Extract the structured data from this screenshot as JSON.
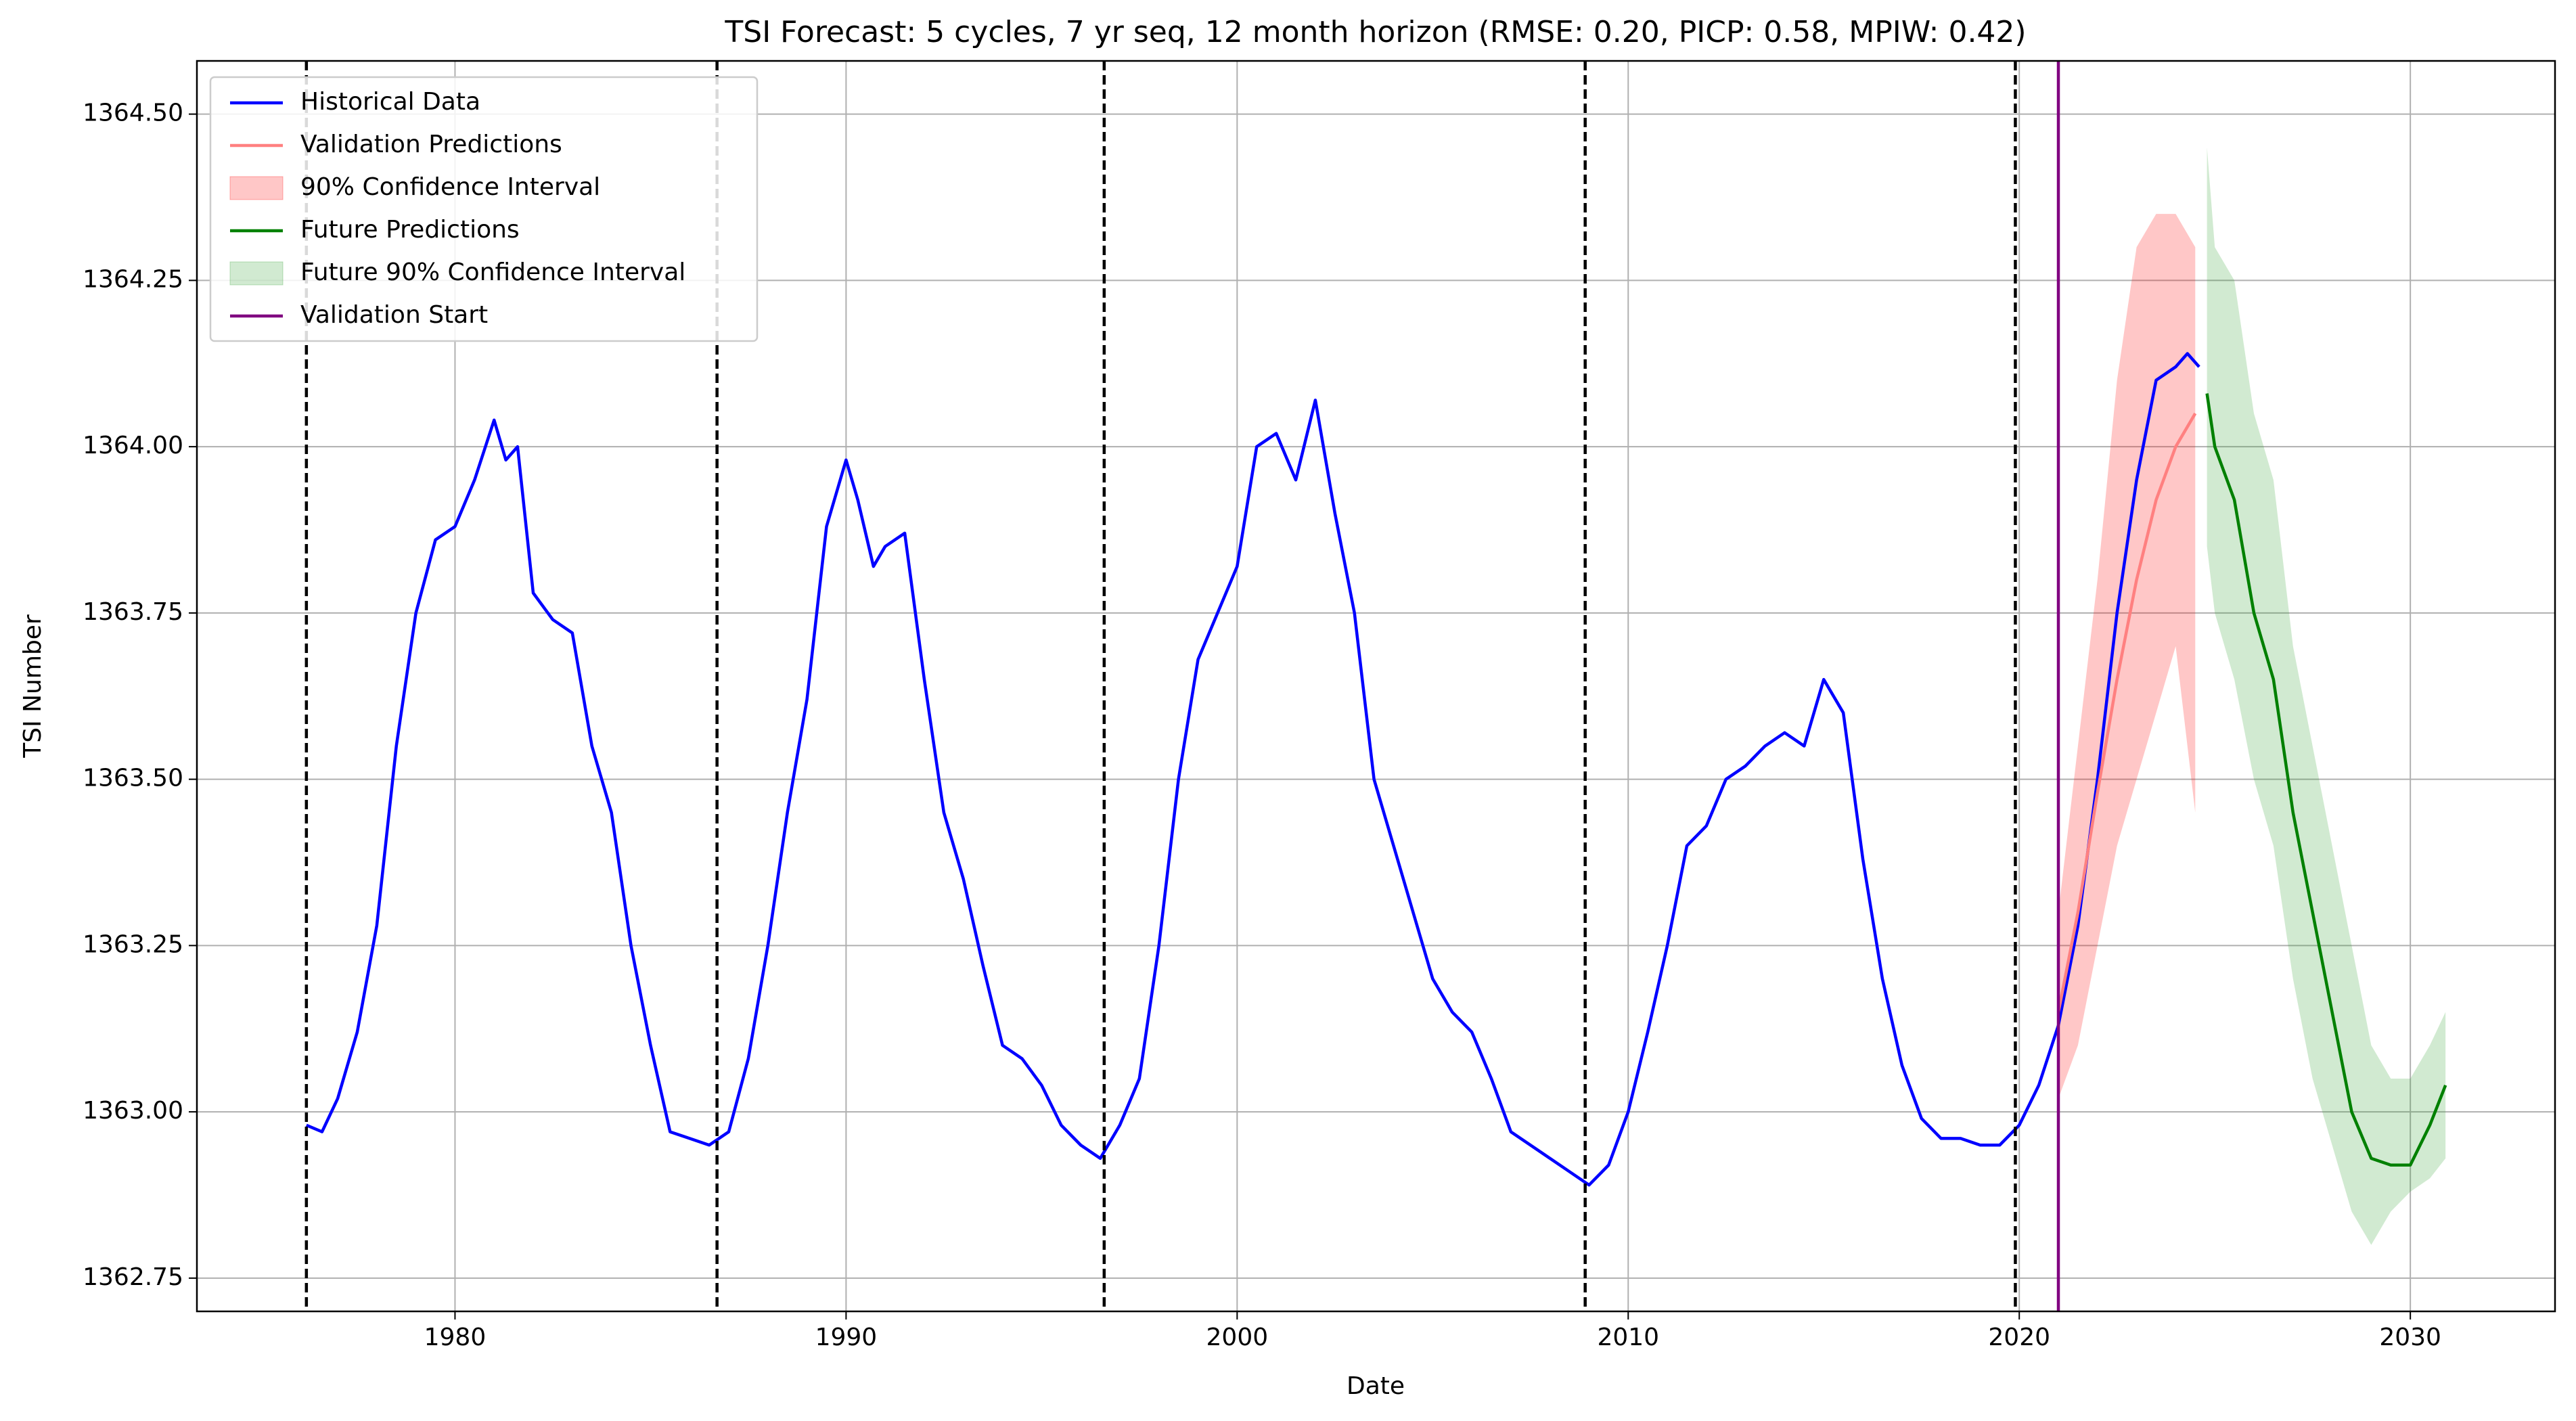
{
  "chart_data": {
    "type": "line",
    "title": "TSI Forecast: 5 cycles, 7 yr seq, 12 month horizon (RMSE: 0.20, PICP: 0.58, MPIW: 0.42)",
    "xlabel": "Date",
    "ylabel": "TSI Number",
    "xlim": [
      1973.4,
      2033.7
    ],
    "ylim": [
      1362.7,
      1364.58
    ],
    "xticks": [
      1980,
      1990,
      2000,
      2010,
      2020,
      2030
    ],
    "yticks": [
      1362.75,
      {
        "value": 1363.0,
        "label": "1363.00"
      },
      1363.25,
      {
        "value": 1363.5,
        "label": "1363.50"
      },
      1363.75,
      {
        "value": 1364.0,
        "label": "1364.00"
      },
      1364.25,
      {
        "value": 1364.5,
        "label": "1364.50"
      }
    ],
    "grid": true,
    "legend": "upper left",
    "series": [
      {
        "name": "Historical Data",
        "style": "line",
        "color": "#0000ff",
        "x": [
          1976.2,
          1976.6,
          1977.0,
          1977.5,
          1978.0,
          1978.5,
          1979.0,
          1979.5,
          1980.0,
          1980.5,
          1981.0,
          1981.3,
          1981.6,
          1982.0,
          1982.5,
          1983.0,
          1983.5,
          1984.0,
          1984.5,
          1985.0,
          1985.5,
          1986.0,
          1986.5,
          1987.0,
          1987.5,
          1988.0,
          1988.5,
          1989.0,
          1989.5,
          1990.0,
          1990.3,
          1990.7,
          1991.0,
          1991.5,
          1992.0,
          1992.5,
          1993.0,
          1993.5,
          1994.0,
          1994.5,
          1995.0,
          1995.5,
          1996.0,
          1996.5,
          1997.0,
          1997.5,
          1998.0,
          1998.5,
          1999.0,
          1999.5,
          2000.0,
          2000.5,
          2001.0,
          2001.5,
          2002.0,
          2002.5,
          2003.0,
          2003.5,
          2004.0,
          2004.5,
          2005.0,
          2005.5,
          2006.0,
          2006.5,
          2007.0,
          2007.5,
          2008.0,
          2008.5,
          2009.0,
          2009.5,
          2010.0,
          2010.5,
          2011.0,
          2011.5,
          2012.0,
          2012.5,
          2013.0,
          2013.5,
          2014.0,
          2014.5,
          2015.0,
          2015.5,
          2016.0,
          2016.5,
          2017.0,
          2017.5,
          2018.0,
          2018.5,
          2019.0,
          2019.5,
          2020.0,
          2020.5,
          2021.0,
          2021.5,
          2022.0,
          2022.5,
          2023.0,
          2023.5,
          2024.0,
          2024.3,
          2024.6
        ],
        "values": [
          1362.98,
          1362.97,
          1363.02,
          1363.12,
          1363.28,
          1363.55,
          1363.75,
          1363.86,
          1363.88,
          1363.95,
          1364.04,
          1363.98,
          1364.0,
          1363.78,
          1363.74,
          1363.72,
          1363.55,
          1363.45,
          1363.25,
          1363.1,
          1362.97,
          1362.96,
          1362.95,
          1362.97,
          1363.08,
          1363.25,
          1363.45,
          1363.62,
          1363.88,
          1363.98,
          1363.92,
          1363.82,
          1363.85,
          1363.87,
          1363.65,
          1363.45,
          1363.35,
          1363.22,
          1363.1,
          1363.08,
          1363.04,
          1362.98,
          1362.95,
          1362.93,
          1362.98,
          1363.05,
          1363.25,
          1363.5,
          1363.68,
          1363.75,
          1363.82,
          1364.0,
          1364.02,
          1363.95,
          1364.07,
          1363.9,
          1363.75,
          1363.5,
          1363.4,
          1363.3,
          1363.2,
          1363.15,
          1363.12,
          1363.05,
          1362.97,
          1362.95,
          1362.93,
          1362.91,
          1362.89,
          1362.92,
          1363.0,
          1363.12,
          1363.25,
          1363.4,
          1363.43,
          1363.5,
          1363.52,
          1363.55,
          1363.57,
          1363.55,
          1363.65,
          1363.6,
          1363.38,
          1363.2,
          1363.07,
          1362.99,
          1362.96,
          1362.96,
          1362.95,
          1362.95,
          1362.98,
          1363.04,
          1363.13,
          1363.28,
          1363.5,
          1363.75,
          1363.95,
          1364.1,
          1364.12,
          1364.14,
          1364.12
        ]
      },
      {
        "name": "Validation Predictions",
        "style": "line",
        "color": "#ff8080",
        "x": [
          2021.0,
          2021.5,
          2022.0,
          2022.5,
          2023.0,
          2023.5,
          2024.0,
          2024.5
        ],
        "values": [
          1363.15,
          1363.3,
          1363.48,
          1363.65,
          1363.8,
          1363.92,
          1364.0,
          1364.05
        ]
      },
      {
        "name": "90% Confidence Interval",
        "style": "band",
        "color": "#ff0000",
        "x": [
          2021.0,
          2021.5,
          2022.0,
          2022.5,
          2023.0,
          2023.5,
          2024.0,
          2024.5
        ],
        "lower": [
          1363.02,
          1363.1,
          1363.25,
          1363.4,
          1363.5,
          1363.6,
          1363.7,
          1363.45
        ],
        "upper": [
          1363.3,
          1363.55,
          1363.8,
          1364.1,
          1364.3,
          1364.35,
          1364.35,
          1364.3
        ]
      },
      {
        "name": "Future Predictions",
        "style": "line",
        "color": "#008000",
        "x": [
          2024.8,
          2025.0,
          2025.5,
          2026.0,
          2026.5,
          2027.0,
          2027.5,
          2028.0,
          2028.5,
          2029.0,
          2029.5,
          2030.0,
          2030.5,
          2030.9
        ],
        "values": [
          1364.08,
          1364.0,
          1363.92,
          1363.75,
          1363.65,
          1363.45,
          1363.3,
          1363.15,
          1363.0,
          1362.93,
          1362.92,
          1362.92,
          1362.98,
          1363.04
        ]
      },
      {
        "name": "Future 90% Confidence Interval",
        "style": "band",
        "color": "#2ca02c",
        "x": [
          2024.8,
          2025.0,
          2025.5,
          2026.0,
          2026.5,
          2027.0,
          2027.5,
          2028.0,
          2028.5,
          2029.0,
          2029.5,
          2030.0,
          2030.5,
          2030.9
        ],
        "lower": [
          1363.85,
          1363.75,
          1363.65,
          1363.5,
          1363.4,
          1363.2,
          1363.05,
          1362.95,
          1362.85,
          1362.8,
          1362.85,
          1362.88,
          1362.9,
          1362.93
        ],
        "upper": [
          1364.45,
          1364.3,
          1364.25,
          1364.05,
          1363.95,
          1363.7,
          1363.55,
          1363.4,
          1363.25,
          1363.1,
          1363.05,
          1363.05,
          1363.1,
          1363.15
        ]
      }
    ],
    "validation_start": {
      "name": "Validation Start",
      "x": 2021.0,
      "color": "#800080"
    },
    "cycle_boundaries": [
      1976.2,
      1986.7,
      1996.6,
      2008.9,
      2019.9
    ]
  }
}
